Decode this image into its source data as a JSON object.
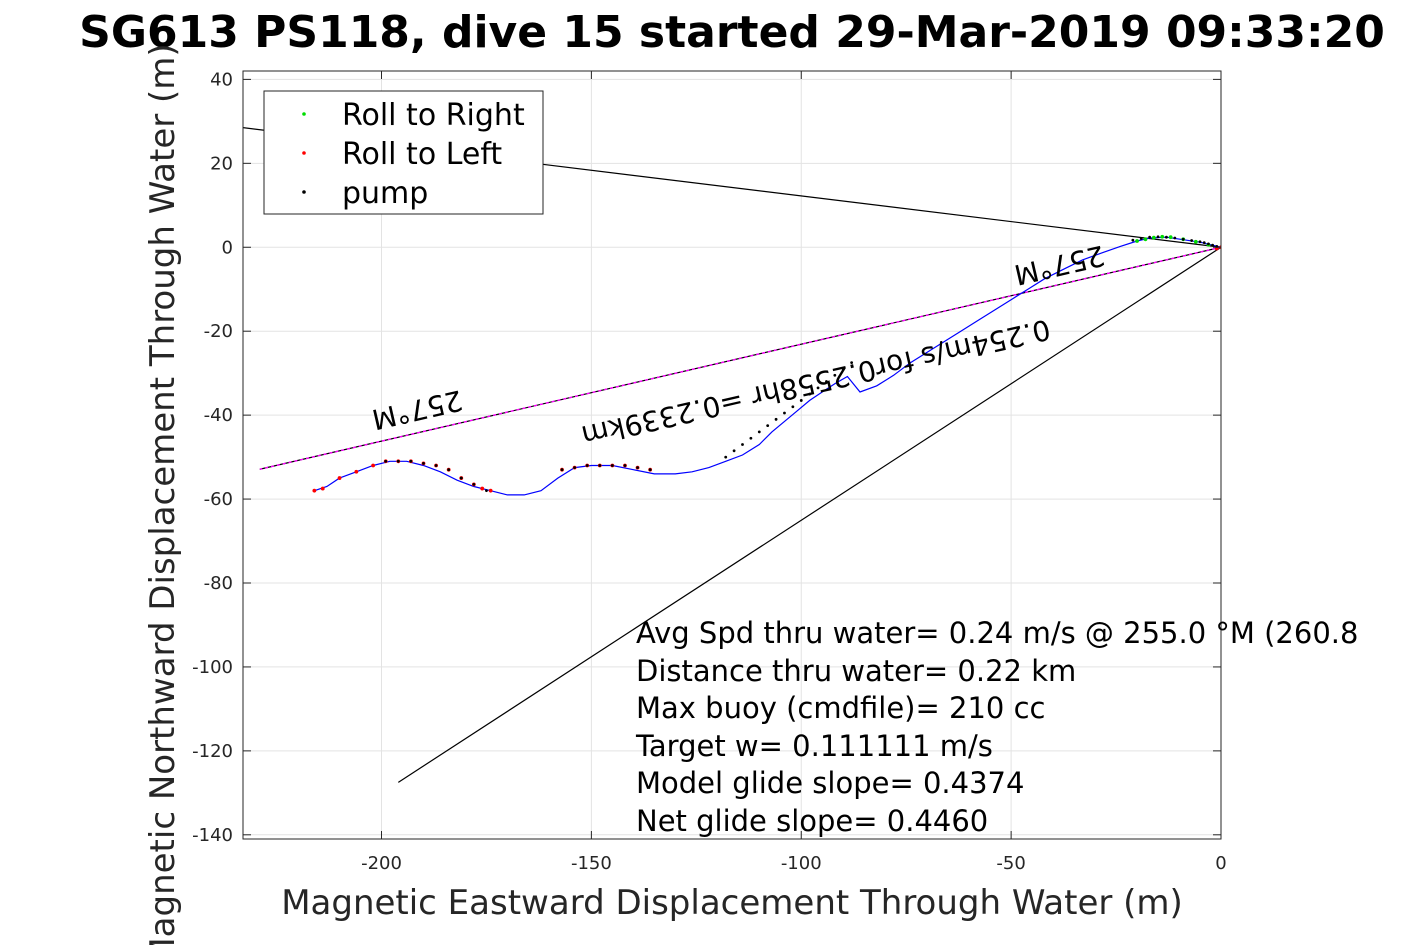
{
  "chart_data": {
    "type": "line",
    "title": "SG613 PS118, dive 15 started 29-Mar-2019 09:33:20",
    "xlabel": "Magnetic Eastward Displacement Through Water (m)",
    "ylabel": "Magnetic Northward Displacement Through Water (m)",
    "xlim": [
      -233,
      0
    ],
    "ylim": [
      -141,
      42
    ],
    "xticks": [
      -200,
      -150,
      -100,
      -50,
      0
    ],
    "yticks": [
      40,
      20,
      0,
      -20,
      -40,
      -60,
      -80,
      -100,
      -120,
      -140
    ],
    "grid": true,
    "legend": {
      "placement": "top-left",
      "entries": [
        {
          "label": "Roll to Right",
          "color": "#00dd00"
        },
        {
          "label": "Roll to Left",
          "color": "#ff0000"
        },
        {
          "label": "pump",
          "color": "#000000"
        }
      ]
    },
    "track": {
      "name": "track",
      "color": "#0000ff",
      "x": [
        0,
        -2,
        -5,
        -9,
        -13,
        -17,
        -20,
        -24,
        -28,
        -33,
        -37,
        -42,
        -46,
        -50,
        -54,
        -58,
        -62,
        -66,
        -70,
        -74,
        -78,
        -82,
        -86,
        -89,
        -92,
        -95,
        -98,
        -101,
        -104,
        -107,
        -110,
        -114,
        -118,
        -122,
        -126,
        -130,
        -135,
        -140,
        -145,
        -150,
        -154,
        -158,
        -162,
        -166,
        -170,
        -174,
        -178,
        -182,
        -186,
        -190,
        -194,
        -198,
        -202,
        -206,
        -210,
        -213,
        -216
      ],
      "y": [
        0,
        0.5,
        1.2,
        1.8,
        2.4,
        2.2,
        1.5,
        0.2,
        -1.2,
        -3,
        -5,
        -7.5,
        -10,
        -12.5,
        -15,
        -17.5,
        -20,
        -22.5,
        -25,
        -27.5,
        -30.5,
        -33,
        -34.5,
        -30.8,
        -32.5,
        -34.5,
        -36.5,
        -39,
        -41.5,
        -44,
        -47,
        -49.5,
        -51,
        -52.5,
        -53.5,
        -54,
        -54,
        -53,
        -52,
        -52,
        -52.5,
        -55,
        -58,
        -59,
        -59,
        -58,
        -57,
        -55.5,
        -53.5,
        -52,
        -51,
        -51,
        -52,
        -53.5,
        -55,
        -57,
        -58
      ]
    },
    "roll_right": {
      "color": "#00dd00",
      "x": [
        -3,
        -6,
        -9,
        -12,
        -14,
        -16,
        -18,
        -20
      ],
      "y": [
        0.6,
        1.3,
        1.9,
        2.4,
        2.5,
        2.3,
        1.9,
        1.5
      ]
    },
    "roll_left": {
      "color": "#ff0000",
      "x": [
        0,
        -1,
        -216,
        -214,
        -210,
        -206,
        -202,
        -199,
        -196,
        -193,
        -190,
        -187,
        -184,
        -181,
        -178,
        -176,
        -174,
        -157,
        -154,
        -151,
        -148,
        -145,
        -142,
        -139,
        -136
      ],
      "y": [
        0,
        -0.3,
        -58,
        -57.5,
        -55,
        -53.5,
        -52,
        -51,
        -51,
        -51,
        -51.5,
        -52,
        -53,
        -55,
        -56.5,
        -57.5,
        -58,
        -53,
        -52.5,
        -52,
        -52,
        -52,
        -52,
        -52.5,
        -53
      ]
    },
    "pump": {
      "color": "#000000",
      "x": [
        -1,
        -2,
        -3,
        -4,
        -5,
        -7,
        -9,
        -11,
        -13,
        -15,
        -17,
        -19,
        -21,
        -199,
        -196,
        -193,
        -190,
        -187,
        -184,
        -181,
        -178,
        -175,
        -157,
        -154,
        -151,
        -148,
        -145,
        -142,
        -139,
        -136,
        -118,
        -116,
        -114,
        -112,
        -110,
        -108,
        -106,
        -104,
        -102,
        -100,
        -98,
        -96,
        -94,
        -92,
        -90,
        -88
      ],
      "y": [
        0.2,
        0.5,
        0.8,
        1.1,
        1.3,
        1.6,
        1.9,
        2.2,
        2.4,
        2.5,
        2.4,
        2.1,
        1.7,
        -51,
        -51,
        -51,
        -51.5,
        -52,
        -53,
        -55,
        -56.5,
        -58,
        -53,
        -52.5,
        -52,
        -52,
        -52,
        -52,
        -52.5,
        -53,
        -50,
        -48.5,
        -47,
        -45.5,
        -44,
        -42.5,
        -41,
        -39.5,
        -38,
        -36.5,
        -35,
        -33.5,
        -32,
        -30.5,
        -29,
        -27.5
      ]
    },
    "bearing_line": {
      "name": "257 °M",
      "color": "#ff00ff",
      "x": [
        0,
        -229
      ],
      "y": [
        0,
        -52.9
      ]
    },
    "reference_lines": [
      {
        "x": [
          0,
          -233
        ],
        "y": [
          0,
          28.5
        ]
      },
      {
        "x": [
          0,
          -196
        ],
        "y": [
          0,
          -127.5
        ]
      }
    ],
    "annotations": [
      {
        "text": "257°M",
        "x": -192,
        "y": -36.5,
        "angle_deg": 167
      },
      {
        "text": "0.254m/s for0.2558hr =0.2339km",
        "x": -97,
        "y": -30,
        "angle_deg": 167
      },
      {
        "text": "257°M",
        "x": -39,
        "y": -2,
        "angle_deg": 167
      }
    ],
    "stats": [
      "Avg Spd thru water=  0.24 m/s @ 255.0 °M (260.8",
      "Distance thru water=  0.22 km",
      "Max buoy (cmdfile)= 210 cc",
      "Target w= 0.111111 m/s",
      "Model glide slope= 0.4374",
      "Net glide slope= 0.4460"
    ]
  }
}
